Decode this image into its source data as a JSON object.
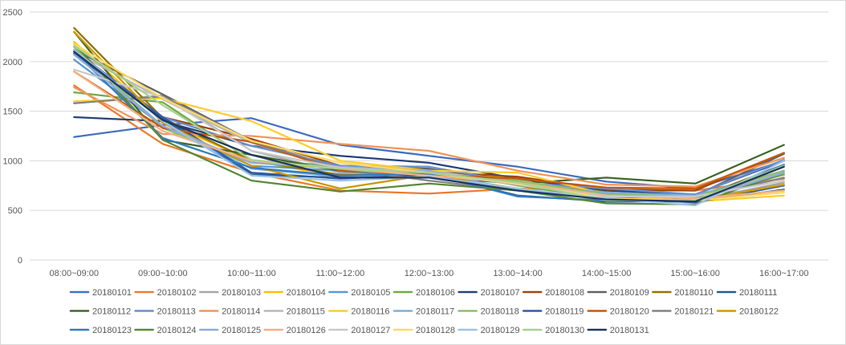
{
  "chart_data": {
    "type": "line",
    "title": "",
    "xlabel": "",
    "ylabel": "",
    "ylim": [
      0,
      2500
    ],
    "y_ticks": [
      "0",
      "500",
      "1000",
      "1500",
      "2000",
      "2500"
    ],
    "y_tick_values": [
      0,
      500,
      1000,
      1500,
      2000,
      2500
    ],
    "grid": true,
    "legend_position": "bottom",
    "categories": [
      "08:00~09:00",
      "09:00~10:00",
      "10:00~11:00",
      "11:00~12:00",
      "12:00~13:00",
      "13:00~14:00",
      "14:00~15:00",
      "15:00~16:00",
      "16:00~17:00"
    ],
    "series": [
      {
        "name": "20180101",
        "color": "#4472c4",
        "values": [
          1240,
          1360,
          1430,
          1160,
          1050,
          940,
          790,
          720,
          1000
        ]
      },
      {
        "name": "20180102",
        "color": "#ed7d31",
        "values": [
          1760,
          1170,
          880,
          700,
          670,
          720,
          700,
          700,
          820
        ]
      },
      {
        "name": "20180103",
        "color": "#a5a5a5",
        "values": [
          1580,
          1660,
          1100,
          880,
          900,
          800,
          650,
          600,
          780
        ]
      },
      {
        "name": "20180104",
        "color": "#ffc000",
        "values": [
          2200,
          1400,
          1000,
          840,
          900,
          820,
          680,
          620,
          700
        ]
      },
      {
        "name": "20180105",
        "color": "#5b9bd5",
        "values": [
          2020,
          1350,
          950,
          900,
          880,
          700,
          640,
          630,
          860
        ]
      },
      {
        "name": "20180106",
        "color": "#70ad47",
        "values": [
          1690,
          1590,
          1000,
          950,
          920,
          750,
          620,
          620,
          860
        ]
      },
      {
        "name": "20180107",
        "color": "#264478",
        "values": [
          1440,
          1400,
          1150,
          1050,
          980,
          820,
          700,
          660,
          1000
        ]
      },
      {
        "name": "20180108",
        "color": "#9e480e",
        "values": [
          2080,
          1440,
          1220,
          950,
          890,
          840,
          710,
          700,
          1080
        ]
      },
      {
        "name": "20180109",
        "color": "#636363",
        "values": [
          2120,
          1670,
          1200,
          920,
          920,
          780,
          680,
          650,
          1070
        ]
      },
      {
        "name": "20180110",
        "color": "#997300",
        "values": [
          2340,
          1430,
          1000,
          860,
          870,
          760,
          640,
          620,
          960
        ]
      },
      {
        "name": "20180111",
        "color": "#255e91",
        "values": [
          2080,
          1420,
          860,
          830,
          860,
          650,
          590,
          590,
          710
        ]
      },
      {
        "name": "20180112",
        "color": "#43682b",
        "values": [
          2300,
          1210,
          1060,
          900,
          840,
          770,
          830,
          770,
          1160
        ]
      },
      {
        "name": "20180113",
        "color": "#698ed0",
        "values": [
          2120,
          1440,
          1150,
          950,
          940,
          780,
          720,
          660,
          1010
        ]
      },
      {
        "name": "20180114",
        "color": "#f1975a",
        "values": [
          1740,
          1270,
          1250,
          1170,
          1100,
          900,
          760,
          740,
          1030
        ]
      },
      {
        "name": "20180115",
        "color": "#b7b7b7",
        "values": [
          2100,
          1620,
          1180,
          920,
          900,
          780,
          660,
          620,
          900
        ]
      },
      {
        "name": "20180116",
        "color": "#ffcd33",
        "values": [
          1600,
          1630,
          1400,
          1000,
          900,
          880,
          660,
          590,
          650
        ]
      },
      {
        "name": "20180117",
        "color": "#7cafdd",
        "values": [
          2120,
          1350,
          920,
          840,
          870,
          770,
          680,
          650,
          900
        ]
      },
      {
        "name": "20180118",
        "color": "#8cc168",
        "values": [
          2150,
          1330,
          980,
          920,
          860,
          800,
          660,
          640,
          900
        ]
      },
      {
        "name": "20180119",
        "color": "#335aa1",
        "values": [
          2100,
          1440,
          880,
          820,
          860,
          770,
          620,
          580,
          750
        ]
      },
      {
        "name": "20180120",
        "color": "#c65911",
        "values": [
          1900,
          1330,
          1190,
          900,
          860,
          820,
          730,
          720,
          1080
        ]
      },
      {
        "name": "20180121",
        "color": "#848484",
        "values": [
          1580,
          1650,
          1200,
          920,
          800,
          700,
          650,
          620,
          830
        ]
      },
      {
        "name": "20180122",
        "color": "#cc9a00",
        "values": [
          2300,
          1380,
          950,
          720,
          860,
          720,
          620,
          600,
          760
        ]
      },
      {
        "name": "20180123",
        "color": "#327dc2",
        "values": [
          2100,
          1230,
          930,
          850,
          870,
          640,
          600,
          600,
          960
        ]
      },
      {
        "name": "20180124",
        "color": "#5a8a39",
        "values": [
          2180,
          1210,
          800,
          690,
          770,
          700,
          570,
          560,
          880
        ]
      },
      {
        "name": "20180125",
        "color": "#8faadc",
        "values": [
          2070,
          1350,
          980,
          940,
          900,
          700,
          620,
          600,
          880
        ]
      },
      {
        "name": "20180126",
        "color": "#f4b183",
        "values": [
          1900,
          1300,
          1000,
          920,
          850,
          780,
          650,
          620,
          700
        ]
      },
      {
        "name": "20180127",
        "color": "#c9c9c9",
        "values": [
          1920,
          1640,
          1100,
          930,
          880,
          760,
          640,
          640,
          800
        ]
      },
      {
        "name": "20180128",
        "color": "#ffd966",
        "values": [
          2180,
          1630,
          1200,
          980,
          880,
          770,
          620,
          600,
          680
        ]
      },
      {
        "name": "20180129",
        "color": "#9dc3e6",
        "values": [
          2120,
          1400,
          850,
          800,
          840,
          720,
          620,
          550,
          1000
        ]
      },
      {
        "name": "20180130",
        "color": "#a9d18e",
        "values": [
          2160,
          1560,
          1010,
          920,
          880,
          780,
          600,
          600,
          950
        ]
      },
      {
        "name": "20180131",
        "color": "#203864",
        "values": [
          2100,
          1410,
          1060,
          830,
          830,
          700,
          610,
          590,
          940
        ]
      }
    ]
  }
}
